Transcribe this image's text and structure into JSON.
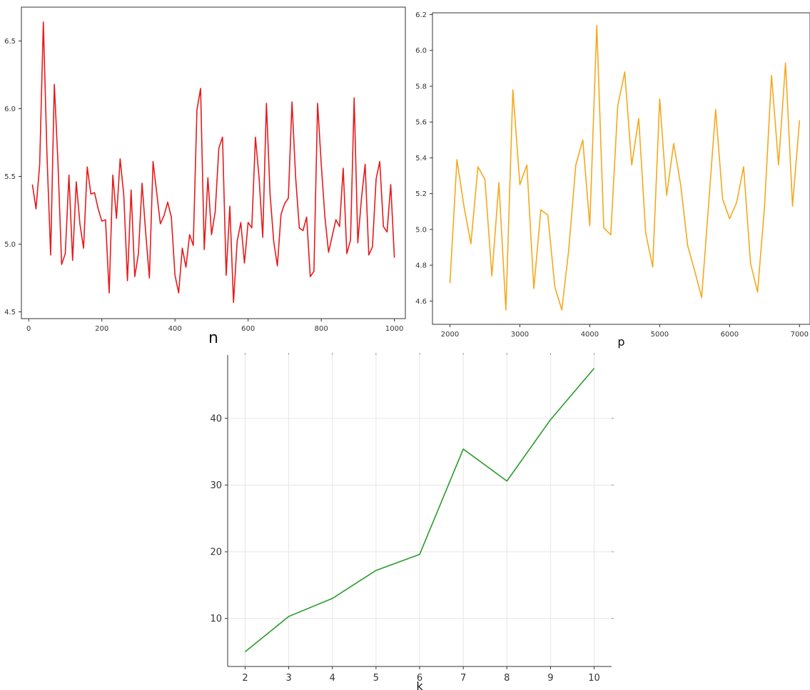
{
  "chart_data": [
    {
      "id": "chart-n",
      "type": "line",
      "title": "",
      "xlabel": "n",
      "ylabel": "",
      "xlim": [
        -20,
        1030
      ],
      "ylim": [
        4.45,
        6.75
      ],
      "xticks": [
        0,
        200,
        400,
        600,
        800,
        1000
      ],
      "yticks": [
        4.5,
        5.0,
        5.5,
        6.0,
        6.5
      ],
      "grid": false,
      "color": "#e8191b",
      "series": [
        {
          "x": [
            10,
            20,
            30,
            40,
            50,
            60,
            70,
            80,
            90,
            100,
            110,
            120,
            130,
            140,
            150,
            160,
            170,
            180,
            190,
            200,
            210,
            220,
            230,
            240,
            250,
            260,
            270,
            280,
            290,
            300,
            310,
            320,
            330,
            340,
            350,
            360,
            370,
            380,
            390,
            400,
            410,
            420,
            430,
            440,
            450,
            460,
            470,
            480,
            490,
            500,
            510,
            520,
            530,
            540,
            550,
            560,
            570,
            580,
            590,
            600,
            610,
            620,
            630,
            640,
            650,
            660,
            670,
            680,
            690,
            700,
            710,
            720,
            730,
            740,
            750,
            760,
            770,
            780,
            790,
            800,
            810,
            820,
            830,
            840,
            850,
            860,
            870,
            880,
            890,
            900,
            910,
            920,
            930,
            940,
            950,
            960,
            970,
            980,
            990,
            1000
          ],
          "y": [
            5.44,
            5.26,
            5.59,
            6.64,
            5.65,
            4.92,
            6.18,
            5.6,
            4.85,
            4.93,
            5.51,
            4.88,
            5.46,
            5.15,
            4.97,
            5.57,
            5.37,
            5.38,
            5.26,
            5.17,
            5.18,
            4.64,
            5.51,
            5.19,
            5.63,
            5.36,
            4.73,
            5.4,
            4.76,
            4.93,
            5.45,
            5.08,
            4.75,
            5.61,
            5.38,
            5.15,
            5.21,
            5.31,
            5.2,
            4.77,
            4.64,
            4.97,
            4.83,
            5.07,
            4.99,
            5.99,
            6.15,
            4.96,
            5.49,
            5.07,
            5.24,
            5.71,
            5.79,
            4.77,
            5.28,
            4.57,
            5.02,
            5.16,
            4.86,
            5.16,
            5.12,
            5.79,
            5.49,
            5.05,
            6.04,
            5.37,
            5.02,
            4.84,
            5.22,
            5.3,
            5.34,
            6.05,
            5.49,
            5.12,
            5.1,
            5.2,
            4.76,
            4.8,
            6.04,
            5.59,
            5.2,
            4.94,
            5.06,
            5.18,
            5.13,
            5.56,
            4.93,
            5.03,
            6.08,
            5.01,
            5.34,
            5.59,
            4.92,
            4.98,
            5.48,
            5.61,
            5.13,
            5.09,
            5.44,
            4.9
          ]
        }
      ]
    },
    {
      "id": "chart-p",
      "type": "line",
      "title": "",
      "xlabel": "p",
      "ylabel": "",
      "xlim": [
        1750,
        7150
      ],
      "ylim": [
        4.47,
        6.21
      ],
      "xticks": [
        2000,
        3000,
        4000,
        5000,
        6000,
        7000
      ],
      "yticks": [
        4.6,
        4.8,
        5.0,
        5.2,
        5.4,
        5.6,
        5.8,
        6.0,
        6.2
      ],
      "grid": false,
      "color": "#f5a81d",
      "series": [
        {
          "x": [
            2000,
            2100,
            2200,
            2300,
            2400,
            2500,
            2600,
            2700,
            2800,
            2900,
            3000,
            3100,
            3200,
            3300,
            3400,
            3500,
            3600,
            3700,
            3800,
            3900,
            4000,
            4100,
            4200,
            4300,
            4400,
            4500,
            4600,
            4700,
            4800,
            4900,
            5000,
            5100,
            5200,
            5300,
            5400,
            5500,
            5600,
            5700,
            5800,
            5900,
            6000,
            6100,
            6200,
            6300,
            6400,
            6500,
            6600,
            6700,
            6800,
            6900,
            7000
          ],
          "y": [
            4.7,
            5.39,
            5.13,
            4.92,
            5.35,
            5.28,
            4.74,
            5.26,
            4.55,
            5.78,
            5.25,
            5.36,
            4.67,
            5.11,
            5.08,
            4.68,
            4.55,
            4.89,
            5.36,
            5.5,
            5.02,
            6.14,
            5.01,
            4.97,
            5.69,
            5.88,
            5.36,
            5.62,
            4.98,
            4.79,
            5.73,
            5.19,
            5.48,
            5.25,
            4.91,
            4.77,
            4.62,
            5.14,
            5.67,
            5.17,
            5.06,
            5.15,
            5.35,
            4.81,
            4.65,
            5.13,
            5.86,
            5.36,
            5.93,
            5.13,
            5.61
          ]
        }
      ]
    },
    {
      "id": "chart-k",
      "type": "line",
      "title": "",
      "xlabel": "k",
      "ylabel": "",
      "xlim": [
        1.6,
        10.4
      ],
      "ylim": [
        2.8,
        49.5
      ],
      "xticks": [
        2,
        3,
        4,
        5,
        6,
        7,
        8,
        9,
        10
      ],
      "yticks": [
        10,
        20,
        30,
        40
      ],
      "grid": true,
      "color": "#2a9a2a",
      "series": [
        {
          "x": [
            2,
            3,
            4,
            5,
            6,
            7,
            8,
            9,
            10
          ],
          "y": [
            5.0,
            10.3,
            13.0,
            17.2,
            19.6,
            35.4,
            30.6,
            39.8,
            47.5
          ]
        }
      ]
    }
  ]
}
